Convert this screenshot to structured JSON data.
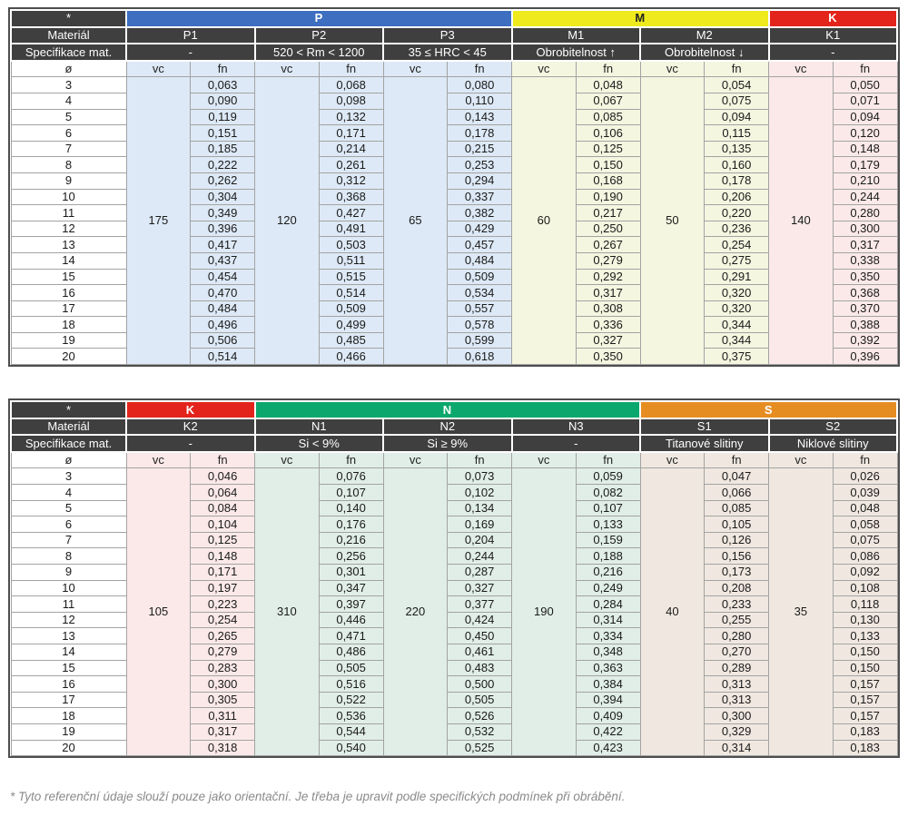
{
  "labels": {
    "asterisk": "*",
    "material_row": "Materiál",
    "spec_row": "Specifikace mat.",
    "diameter": "ø",
    "vc": "vc",
    "fn": "fn"
  },
  "diameters": [
    "3",
    "4",
    "5",
    "6",
    "7",
    "8",
    "9",
    "10",
    "11",
    "12",
    "13",
    "14",
    "15",
    "16",
    "17",
    "18",
    "19",
    "20"
  ],
  "colors": {
    "header_dark": "#3f3f3f",
    "band_P": "#3d6ec0",
    "band_M": "#eeea1d",
    "band_K": "#e3241c",
    "band_N": "#0ca76d",
    "band_S": "#e68d22",
    "tint_P": "#dde9f6",
    "tint_M": "#f4f6e0",
    "tint_K": "#fbe9e9",
    "tint_N": "#e0eee7",
    "tint_S": "#f0e8e0"
  },
  "tables": [
    {
      "groups": [
        {
          "letter": "P",
          "band_color": "#3d6ec0",
          "band_text_color": "#ffffff",
          "tint": "#dde9f6",
          "columns": [
            {
              "name": "P1",
              "spec": "-",
              "vc": "175",
              "fn": [
                "0,063",
                "0,090",
                "0,119",
                "0,151",
                "0,185",
                "0,222",
                "0,262",
                "0,304",
                "0,349",
                "0,396",
                "0,417",
                "0,437",
                "0,454",
                "0,470",
                "0,484",
                "0,496",
                "0,506",
                "0,514"
              ]
            },
            {
              "name": "P2",
              "spec": "520 < Rm < 1200",
              "vc": "120",
              "fn": [
                "0,068",
                "0,098",
                "0,132",
                "0,171",
                "0,214",
                "0,261",
                "0,312",
                "0,368",
                "0,427",
                "0,491",
                "0,503",
                "0,511",
                "0,515",
                "0,514",
                "0,509",
                "0,499",
                "0,485",
                "0,466"
              ]
            },
            {
              "name": "P3",
              "spec": "35 ≤ HRC < 45",
              "vc": "65",
              "fn": [
                "0,080",
                "0,110",
                "0,143",
                "0,178",
                "0,215",
                "0,253",
                "0,294",
                "0,337",
                "0,382",
                "0,429",
                "0,457",
                "0,484",
                "0,509",
                "0,534",
                "0,557",
                "0,578",
                "0,599",
                "0,618"
              ]
            }
          ]
        },
        {
          "letter": "M",
          "band_color": "#eeea1d",
          "band_text_color": "#222222",
          "tint": "#f4f6e0",
          "columns": [
            {
              "name": "M1",
              "spec": "Obrobitelnost ↑",
              "vc": "60",
              "fn": [
                "0,048",
                "0,067",
                "0,085",
                "0,106",
                "0,125",
                "0,150",
                "0,168",
                "0,190",
                "0,217",
                "0,250",
                "0,267",
                "0,279",
                "0,292",
                "0,317",
                "0,308",
                "0,336",
                "0,327",
                "0,350"
              ]
            },
            {
              "name": "M2",
              "spec": "Obrobitelnost ↓",
              "vc": "50",
              "fn": [
                "0,054",
                "0,075",
                "0,094",
                "0,115",
                "0,135",
                "0,160",
                "0,178",
                "0,206",
                "0,220",
                "0,236",
                "0,254",
                "0,275",
                "0,291",
                "0,320",
                "0,320",
                "0,344",
                "0,344",
                "0,375"
              ]
            }
          ]
        },
        {
          "letter": "K",
          "band_color": "#e3241c",
          "band_text_color": "#ffffff",
          "tint": "#fbe9e9",
          "columns": [
            {
              "name": "K1",
              "spec": "-",
              "vc": "140",
              "fn": [
                "0,050",
                "0,071",
                "0,094",
                "0,120",
                "0,148",
                "0,179",
                "0,210",
                "0,244",
                "0,280",
                "0,300",
                "0,317",
                "0,338",
                "0,350",
                "0,368",
                "0,370",
                "0,388",
                "0,392",
                "0,396"
              ]
            }
          ]
        }
      ]
    },
    {
      "groups": [
        {
          "letter": "K",
          "band_color": "#e3241c",
          "band_text_color": "#ffffff",
          "tint": "#fbe9e9",
          "columns": [
            {
              "name": "K2",
              "spec": "-",
              "vc": "105",
              "fn": [
                "0,046",
                "0,064",
                "0,084",
                "0,104",
                "0,125",
                "0,148",
                "0,171",
                "0,197",
                "0,223",
                "0,254",
                "0,265",
                "0,279",
                "0,283",
                "0,300",
                "0,305",
                "0,311",
                "0,317",
                "0,318"
              ]
            }
          ]
        },
        {
          "letter": "N",
          "band_color": "#0ca76d",
          "band_text_color": "#ffffff",
          "tint": "#e0eee7",
          "columns": [
            {
              "name": "N1",
              "spec": "Si < 9%",
              "vc": "310",
              "fn": [
                "0,076",
                "0,107",
                "0,140",
                "0,176",
                "0,216",
                "0,256",
                "0,301",
                "0,347",
                "0,397",
                "0,446",
                "0,471",
                "0,486",
                "0,505",
                "0,516",
                "0,522",
                "0,536",
                "0,544",
                "0,540"
              ]
            },
            {
              "name": "N2",
              "spec": "Si ≥ 9%",
              "vc": "220",
              "fn": [
                "0,073",
                "0,102",
                "0,134",
                "0,169",
                "0,204",
                "0,244",
                "0,287",
                "0,327",
                "0,377",
                "0,424",
                "0,450",
                "0,461",
                "0,483",
                "0,500",
                "0,505",
                "0,526",
                "0,532",
                "0,525"
              ]
            },
            {
              "name": "N3",
              "spec": "-",
              "vc": "190",
              "fn": [
                "0,059",
                "0,082",
                "0,107",
                "0,133",
                "0,159",
                "0,188",
                "0,216",
                "0,249",
                "0,284",
                "0,314",
                "0,334",
                "0,348",
                "0,363",
                "0,384",
                "0,394",
                "0,409",
                "0,422",
                "0,423"
              ]
            }
          ]
        },
        {
          "letter": "S",
          "band_color": "#e68d22",
          "band_text_color": "#ffffff",
          "tint": "#f0e8e0",
          "columns": [
            {
              "name": "S1",
              "spec": "Titanové slitiny",
              "vc": "40",
              "fn": [
                "0,047",
                "0,066",
                "0,085",
                "0,105",
                "0,126",
                "0,156",
                "0,173",
                "0,208",
                "0,233",
                "0,255",
                "0,280",
                "0,270",
                "0,289",
                "0,313",
                "0,313",
                "0,300",
                "0,329",
                "0,314"
              ]
            },
            {
              "name": "S2",
              "spec": "Niklové slitiny",
              "vc": "35",
              "fn": [
                "0,026",
                "0,039",
                "0,048",
                "0,058",
                "0,075",
                "0,086",
                "0,092",
                "0,108",
                "0,118",
                "0,130",
                "0,133",
                "0,150",
                "0,150",
                "0,157",
                "0,157",
                "0,157",
                "0,183",
                "0,183"
              ]
            }
          ]
        }
      ]
    }
  ],
  "footnote": "* Tyto referenční údaje slouží pouze jako orientační. Je třeba je upravit podle specifických podmínek při obrábění."
}
